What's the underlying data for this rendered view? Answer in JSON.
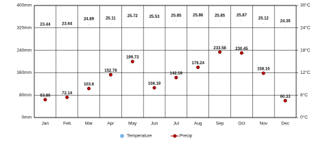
{
  "chart_data": {
    "type": "climate",
    "categories": [
      "Jan",
      "Feb",
      "Mar",
      "Apr",
      "May",
      "Jun",
      "Jul",
      "Aug",
      "Sep",
      "Oct",
      "Nov",
      "Dec"
    ],
    "series": [
      {
        "name": "Temperature",
        "color": "#7fb8e8",
        "axis": "y2",
        "values": [
          23.44,
          23.64,
          24.89,
          25.11,
          25.72,
          25.53,
          25.85,
          25.86,
          25.85,
          25.87,
          25.12,
          24.36
        ]
      },
      {
        "name": "Precip",
        "color": "#c00000",
        "values": [
          63.86,
          72.14,
          103.6,
          152.78,
          199.73,
          106.19,
          142.59,
          179.24,
          233.58,
          230.45,
          158.16,
          60.33
        ]
      }
    ],
    "ylim": [
      0,
      400
    ],
    "yticks": [
      {
        "value": 0,
        "label": "0mm"
      },
      {
        "value": 80,
        "label": "80mm"
      },
      {
        "value": 160,
        "label": "160mm"
      },
      {
        "value": 240,
        "label": "240mm"
      },
      {
        "value": 320,
        "label": "320mm"
      },
      {
        "value": 400,
        "label": "400mm"
      }
    ],
    "y2lim": [
      0,
      30
    ],
    "y2ticks": [
      {
        "value": 0,
        "label": "0°C"
      },
      {
        "value": 6,
        "label": "6°C"
      },
      {
        "value": 12,
        "label": "12°C"
      },
      {
        "value": 18,
        "label": "18°C"
      },
      {
        "value": 24,
        "label": "24°C"
      },
      {
        "value": 30,
        "label": "30°C"
      }
    ],
    "grid": true
  }
}
